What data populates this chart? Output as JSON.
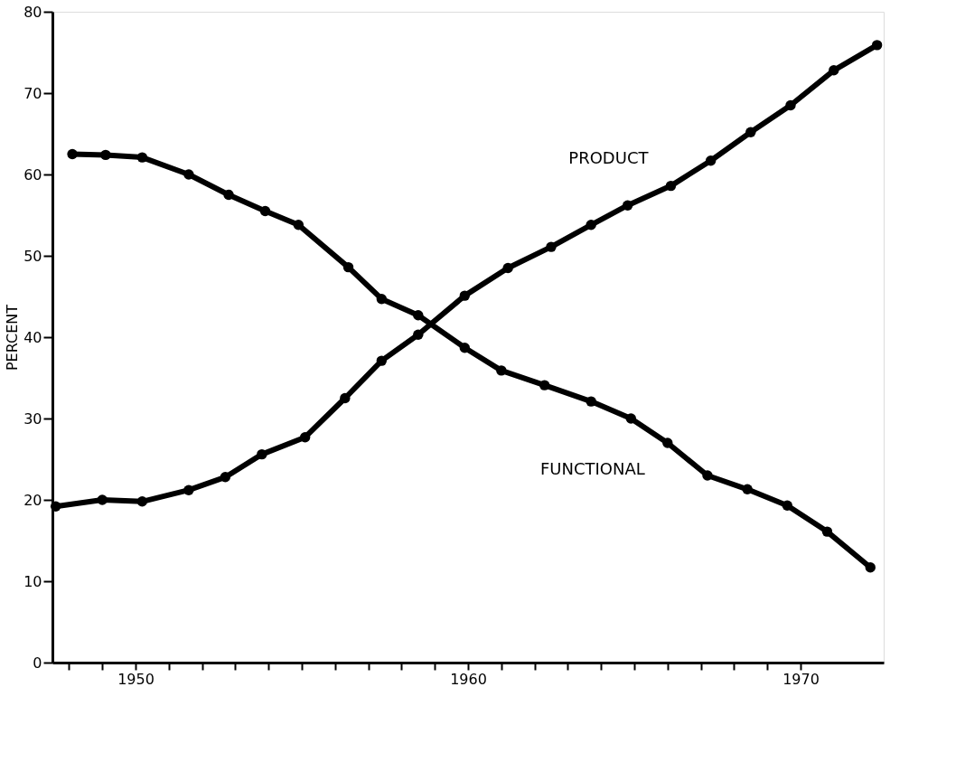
{
  "chart_data": {
    "type": "line",
    "ylabel": "PERCENT",
    "xlim": [
      1947.5,
      1972.5
    ],
    "ylim": [
      0,
      80
    ],
    "xticks": [
      {
        "value": 1948,
        "label": null
      },
      {
        "value": 1949,
        "label": null
      },
      1950,
      {
        "value": 1951,
        "label": null
      },
      {
        "value": 1952,
        "label": null
      },
      {
        "value": 1953,
        "label": null
      },
      {
        "value": 1954,
        "label": null
      },
      {
        "value": 1955,
        "label": null
      },
      {
        "value": 1956,
        "label": null
      },
      {
        "value": 1957,
        "label": null
      },
      {
        "value": 1958,
        "label": null
      },
      {
        "value": 1959,
        "label": null
      },
      1960,
      {
        "value": 1961,
        "label": null
      },
      {
        "value": 1962,
        "label": null
      },
      {
        "value": 1963,
        "label": null
      },
      {
        "value": 1964,
        "label": null
      },
      {
        "value": 1965,
        "label": null
      },
      {
        "value": 1966,
        "label": null
      },
      {
        "value": 1967,
        "label": null
      },
      {
        "value": 1968,
        "label": null
      },
      {
        "value": 1969,
        "label": null
      },
      1970
    ],
    "yticks": [
      0,
      10,
      20,
      30,
      40,
      50,
      60,
      70,
      80
    ],
    "grid": false,
    "marker": "circle",
    "line_style": "solid",
    "series": [
      {
        "name": "PRODUCT",
        "color": "#000000",
        "x": [
          1947.6,
          1949.0,
          1950.2,
          1951.6,
          1952.7,
          1953.8,
          1955.1,
          1956.3,
          1957.4,
          1958.5,
          1959.9,
          1961.2,
          1962.5,
          1963.7,
          1964.8,
          1966.1,
          1967.3,
          1968.5,
          1969.7,
          1971.0,
          1972.3
        ],
        "values": [
          19.2,
          20.0,
          19.8,
          21.2,
          22.8,
          25.6,
          27.7,
          32.5,
          37.1,
          40.3,
          45.1,
          48.5,
          51.1,
          53.8,
          56.2,
          58.6,
          61.7,
          65.2,
          68.5,
          72.8,
          75.9
        ]
      },
      {
        "name": "FUNCTIONAL",
        "color": "#000000",
        "x": [
          1948.1,
          1949.1,
          1950.2,
          1951.6,
          1952.8,
          1953.9,
          1954.9,
          1956.4,
          1957.4,
          1958.5,
          1959.9,
          1961.0,
          1962.3,
          1963.7,
          1964.9,
          1966.0,
          1967.2,
          1968.4,
          1969.6,
          1970.8,
          1972.1
        ],
        "values": [
          62.5,
          62.4,
          62.1,
          60.0,
          57.5,
          55.5,
          53.8,
          48.6,
          44.7,
          42.7,
          38.7,
          35.9,
          34.1,
          32.1,
          30.0,
          27.0,
          23.0,
          21.3,
          19.3,
          16.1,
          11.7
        ]
      }
    ]
  }
}
